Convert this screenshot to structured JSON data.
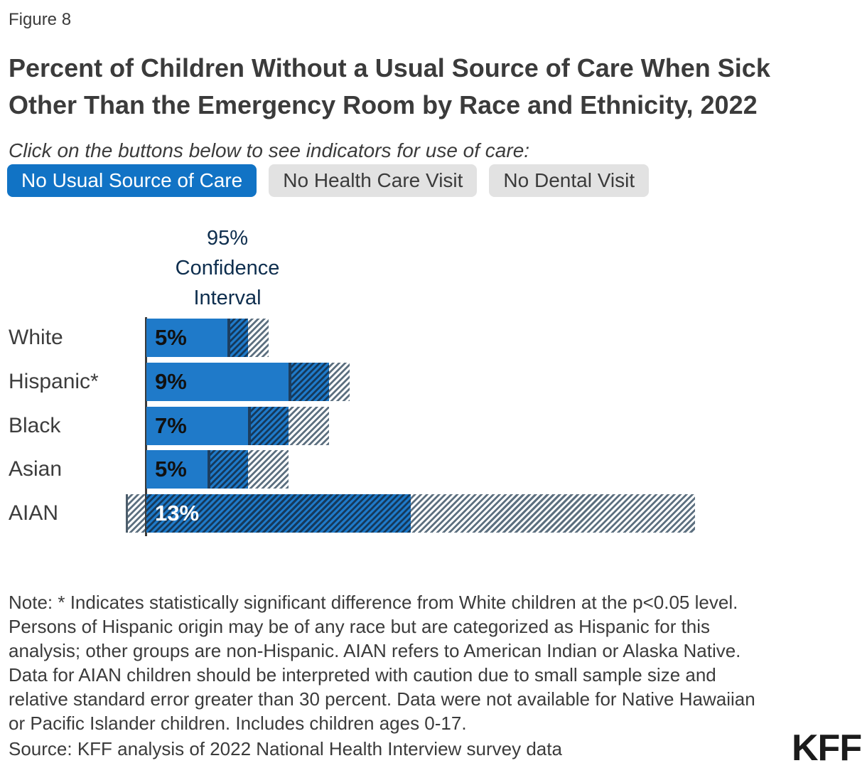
{
  "figure_label": "Figure 8",
  "title_lines": [
    "Percent of Children Without a Usual Source of Care When Sick",
    "Other Than the Emergency Room by Race and Ethnicity, 2022"
  ],
  "subtitle": "Click on the buttons below to see indicators for use of care:",
  "buttons": [
    {
      "label": "No Usual Source of Care",
      "active": true
    },
    {
      "label": "No Health Care Visit",
      "active": false
    },
    {
      "label": "No Dental Visit",
      "active": false
    }
  ],
  "chart_data": {
    "type": "bar",
    "orientation": "horizontal",
    "title": "Percent of Children Without a Usual Source of Care When Sick Other Than the Emergency Room by Race and Ethnicity, 2022",
    "ci_label_lines": [
      "95%",
      "Confidence",
      "Interval"
    ],
    "categories": [
      "White",
      "Hispanic*",
      "Black",
      "Asian",
      "AIAN"
    ],
    "series": [
      {
        "name": "No Usual Source of Care",
        "values": [
          5,
          9,
          7,
          5,
          13
        ],
        "value_labels": [
          "5%",
          "9%",
          "7%",
          "5%",
          "13%"
        ],
        "ci_low": [
          4,
          7,
          5,
          3,
          -1
        ],
        "ci_high": [
          6,
          10,
          9,
          7,
          27
        ]
      }
    ],
    "value_label_white": [
      false,
      false,
      false,
      false,
      true
    ],
    "xlim": [
      -1,
      27
    ],
    "value_unit": "%",
    "gridlines": false,
    "axis_ticks": "none (values labeled on bars, 95% CI shown as hatched ranges)"
  },
  "note_lines": [
    "Note: * Indicates statistically significant difference from White children at the p<0.05 level.",
    "Persons of Hispanic origin may be of any race but are categorized as Hispanic for this",
    "analysis; other groups are non-Hispanic. AIAN refers to American Indian or Alaska Native.",
    "Data for AIAN children should be interpreted with caution due to small sample size and",
    "relative standard error greater than 30 percent. Data were not available for Native Hawaiian",
    "or Pacific Islander children. Includes children ages 0-17."
  ],
  "source": "Source: KFF analysis of 2022 National Health Interview survey data",
  "logo": "KFF",
  "colors": {
    "btn-blue": "#1173c5",
    "btn-gray": "#e2e2e2",
    "bar-blue": "#1f7ac9",
    "hatch-navy": "#15395b",
    "hatch-gray": "#5d7080",
    "hatch-gray-edge": "#4c5d6b",
    "ci-edge": "#1c3d5e",
    "ci-navy": "#0e2e4e",
    "axis": "#3a3a3a"
  }
}
